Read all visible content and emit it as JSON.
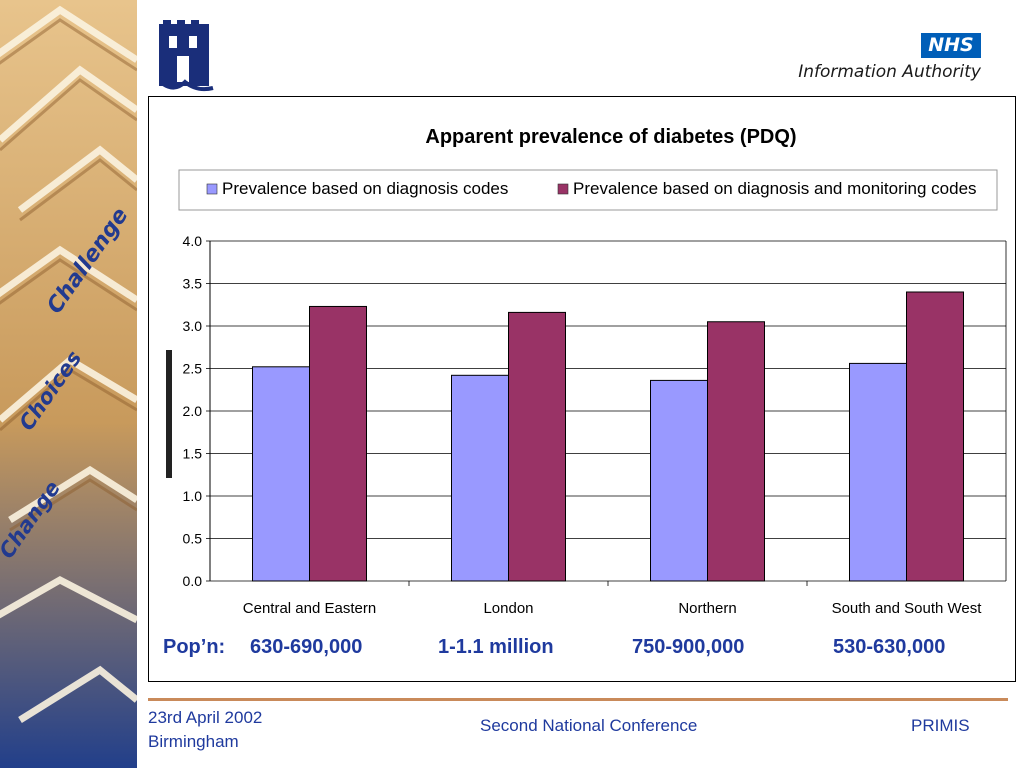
{
  "header": {
    "nhs_logo_text": "NHS",
    "nhs_subtitle": "Information Authority"
  },
  "sidebar": {
    "words": [
      "Challenge",
      "Choices",
      "Change"
    ]
  },
  "chart_data": {
    "type": "bar",
    "title": "Apparent prevalence of diabetes (PDQ)",
    "ylabel": "",
    "xlabel": "",
    "categories": [
      "Central and Eastern",
      "London",
      "Northern",
      "South and South West"
    ],
    "series": [
      {
        "name": "Prevalence based on diagnosis codes",
        "color": "#9999ff",
        "values": [
          2.52,
          2.42,
          2.36,
          2.56
        ]
      },
      {
        "name": "Prevalence based on diagnosis and monitoring codes",
        "color": "#993366",
        "values": [
          3.23,
          3.16,
          3.05,
          3.4
        ]
      }
    ],
    "ylim": [
      0,
      4.0
    ],
    "yticks": [
      "0.0",
      "0.5",
      "1.0",
      "1.5",
      "2.0",
      "2.5",
      "3.0",
      "3.5",
      "4.0"
    ],
    "grid": true,
    "legend_position": "top"
  },
  "population": {
    "label": "Pop’n:",
    "values": [
      "630-690,000",
      "1-1.1 million",
      "750-900,000",
      "530-630,000"
    ]
  },
  "footer": {
    "date": "23rd April 2002",
    "place": "Birmingham",
    "conference": "Second National Conference",
    "org": "PRIMIS"
  }
}
